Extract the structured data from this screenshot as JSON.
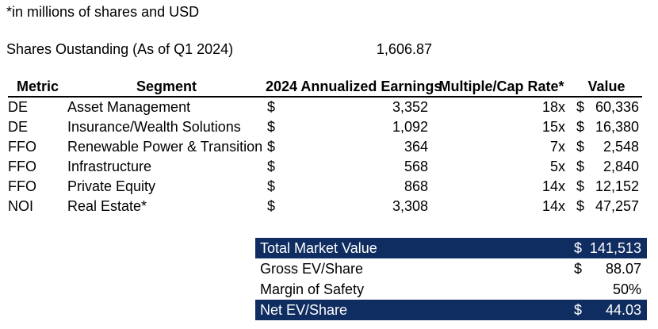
{
  "note": "*in millions of shares and USD",
  "shares_outstanding": {
    "label": "Shares Oustanding (As of Q1 2024)",
    "value": "1,606.87"
  },
  "table": {
    "currency_symbol": "$",
    "headers": {
      "metric": "Metric",
      "segment": "Segment",
      "earnings": "2024 Annualized Earnings",
      "multiple": "Multiple/Cap Rate*",
      "value": "Value"
    },
    "rows": [
      {
        "metric": "DE",
        "segment": "Asset Management",
        "earnings": "3,352",
        "multiple": "18x",
        "value": "60,336"
      },
      {
        "metric": "DE",
        "segment": "Insurance/Wealth Solutions",
        "earnings": "1,092",
        "multiple": "15x",
        "value": "16,380"
      },
      {
        "metric": "FFO",
        "segment": "Renewable Power & Transition",
        "earnings": "364",
        "multiple": "7x",
        "value": "2,548"
      },
      {
        "metric": "FFO",
        "segment": "Infrastructure",
        "earnings": "568",
        "multiple": "5x",
        "value": "2,840"
      },
      {
        "metric": "FFO",
        "segment": "Private Equity",
        "earnings": "868",
        "multiple": "14x",
        "value": "12,152"
      },
      {
        "metric": "NOI",
        "segment": "Real Estate*",
        "earnings": "3,308",
        "multiple": "14x",
        "value": "47,257"
      }
    ]
  },
  "summary": {
    "rows": [
      {
        "label": "Total Market Value",
        "currency": "$",
        "value": "141,513",
        "highlight": true
      },
      {
        "label": "Gross EV/Share",
        "currency": "$",
        "value": "88.07",
        "highlight": false
      },
      {
        "label": "Margin of Safety",
        "currency": "",
        "value": "50%",
        "highlight": false
      },
      {
        "label": "Net EV/Share",
        "currency": "$",
        "value": "44.03",
        "highlight": true
      }
    ]
  },
  "colors": {
    "highlight_bg": "#102d61",
    "highlight_text": "#ffffff",
    "header_rule": "#000000"
  }
}
